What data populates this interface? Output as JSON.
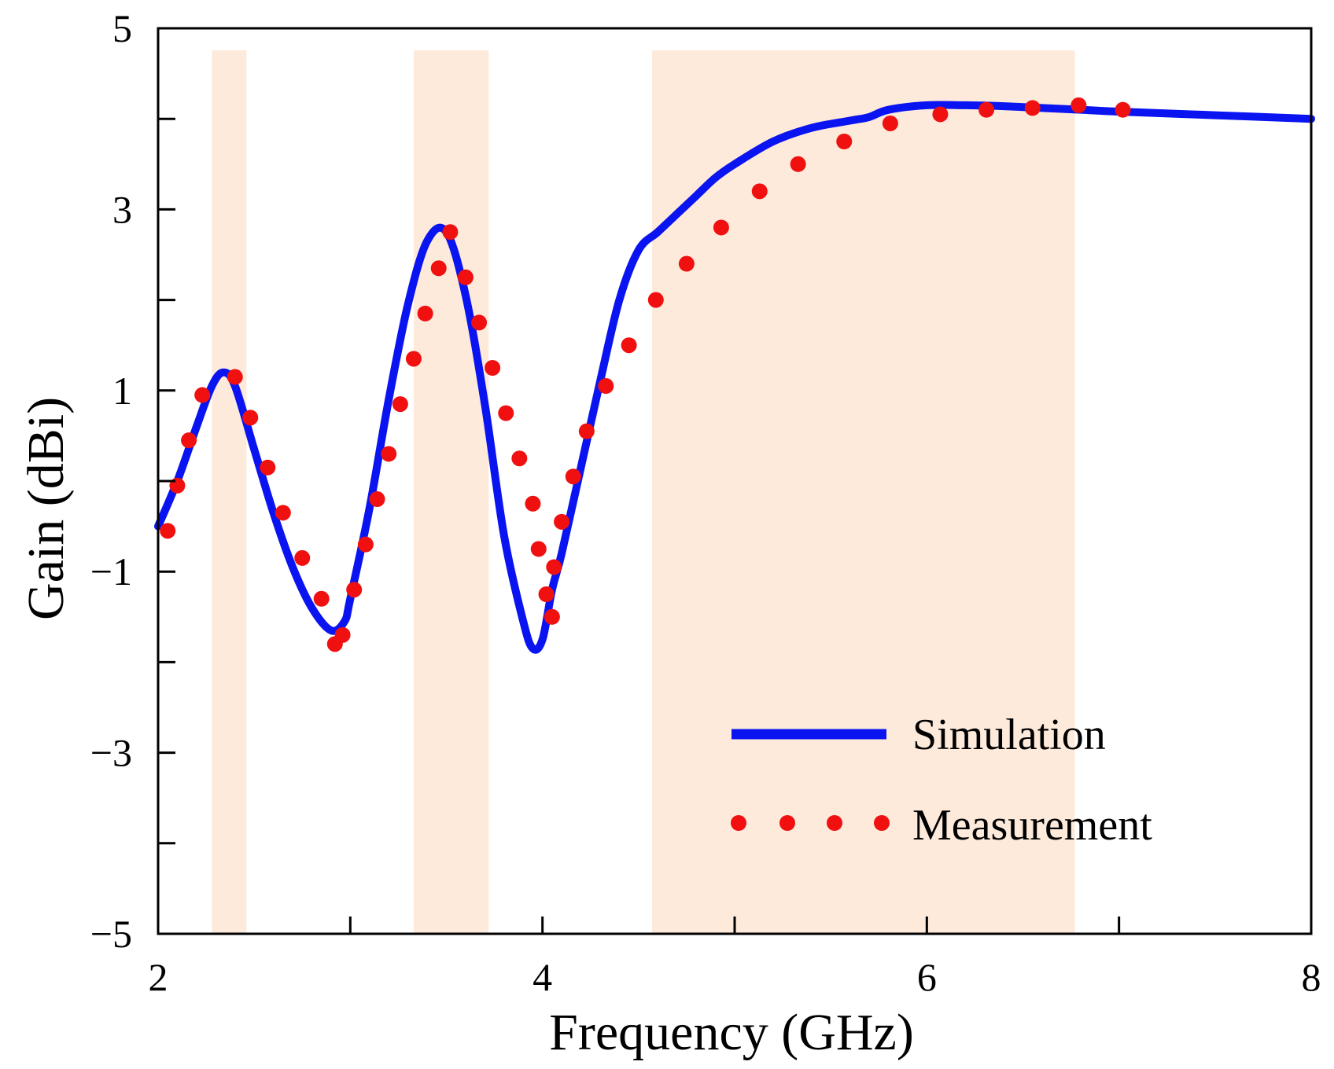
{
  "chart_data": {
    "type": "line",
    "title": "",
    "xlabel": "Frequency (GHz)",
    "ylabel": "Gain (dBi)",
    "xlim": [
      2,
      8
    ],
    "ylim": [
      -5,
      5
    ],
    "x_ticks": [
      2,
      4,
      6,
      8
    ],
    "x_minor_ticks": [
      3,
      5,
      7
    ],
    "y_ticks": [
      -5,
      -3,
      -1,
      1,
      3,
      5
    ],
    "y_tick_labels": [
      "−5",
      "−3",
      "−1",
      "1",
      "3",
      "5"
    ],
    "y_minor_ticks": [
      -4,
      -2,
      0,
      2,
      4
    ],
    "grid": false,
    "legend_position": "bottom-right",
    "bands": [
      {
        "x0": 2.28,
        "x1": 2.46
      },
      {
        "x0": 3.33,
        "x1": 3.72
      },
      {
        "x0": 4.57,
        "x1": 6.77
      }
    ],
    "series": [
      {
        "name": "Simulation",
        "style": "solid",
        "color": "#0a14f0",
        "x": [
          2.0,
          2.1,
          2.2,
          2.28,
          2.34,
          2.4,
          2.5,
          2.6,
          2.7,
          2.8,
          2.9,
          2.97,
          3.0,
          3.1,
          3.2,
          3.3,
          3.4,
          3.5,
          3.6,
          3.7,
          3.8,
          3.9,
          3.95,
          4.0,
          4.05,
          4.1,
          4.2,
          4.3,
          4.4,
          4.5,
          4.6,
          4.7,
          4.8,
          4.9,
          5.0,
          5.2,
          5.4,
          5.6,
          5.7,
          5.8,
          6.0,
          6.2,
          6.4,
          6.6,
          6.8,
          7.0,
          7.5,
          8.0
        ],
        "values": [
          -0.5,
          0.0,
          0.6,
          1.05,
          1.2,
          1.05,
          0.35,
          -0.35,
          -0.95,
          -1.4,
          -1.65,
          -1.55,
          -1.3,
          -0.3,
          0.9,
          1.95,
          2.65,
          2.75,
          2.05,
          0.85,
          -0.6,
          -1.55,
          -1.85,
          -1.75,
          -1.2,
          -0.8,
          0.15,
          1.1,
          2.0,
          2.55,
          2.75,
          2.95,
          3.15,
          3.35,
          3.5,
          3.75,
          3.9,
          3.98,
          4.02,
          4.1,
          4.15,
          4.15,
          4.14,
          4.12,
          4.1,
          4.08,
          4.04,
          4.0
        ]
      },
      {
        "name": "Measurement",
        "style": "dotted",
        "color": "#f01010",
        "x": [
          2.05,
          2.1,
          2.16,
          2.23,
          2.4,
          2.48,
          2.57,
          2.65,
          2.75,
          2.85,
          2.92,
          2.96,
          3.02,
          3.08,
          3.14,
          3.2,
          3.26,
          3.33,
          3.39,
          3.46,
          3.52,
          3.6,
          3.67,
          3.74,
          3.81,
          3.88,
          3.95,
          3.98,
          4.02,
          4.05,
          4.06,
          4.1,
          4.16,
          4.23,
          4.33,
          4.45,
          4.59,
          4.75,
          4.93,
          5.13,
          5.33,
          5.57,
          5.81,
          6.07,
          6.31,
          6.55,
          6.79,
          7.02
        ],
        "values": [
          -0.55,
          -0.05,
          0.45,
          0.95,
          1.15,
          0.7,
          0.15,
          -0.35,
          -0.85,
          -1.3,
          -1.8,
          -1.7,
          -1.2,
          -0.7,
          -0.2,
          0.3,
          0.85,
          1.35,
          1.85,
          2.35,
          2.75,
          2.25,
          1.75,
          1.25,
          0.75,
          0.25,
          -0.25,
          -0.75,
          -1.25,
          -1.5,
          -0.95,
          -0.45,
          0.05,
          0.55,
          1.05,
          1.5,
          2.0,
          2.4,
          2.8,
          3.2,
          3.5,
          3.75,
          3.95,
          4.05,
          4.1,
          4.12,
          4.15,
          4.1
        ]
      }
    ]
  },
  "colors": {
    "band": "#fdeadb",
    "axis": "#000000"
  }
}
